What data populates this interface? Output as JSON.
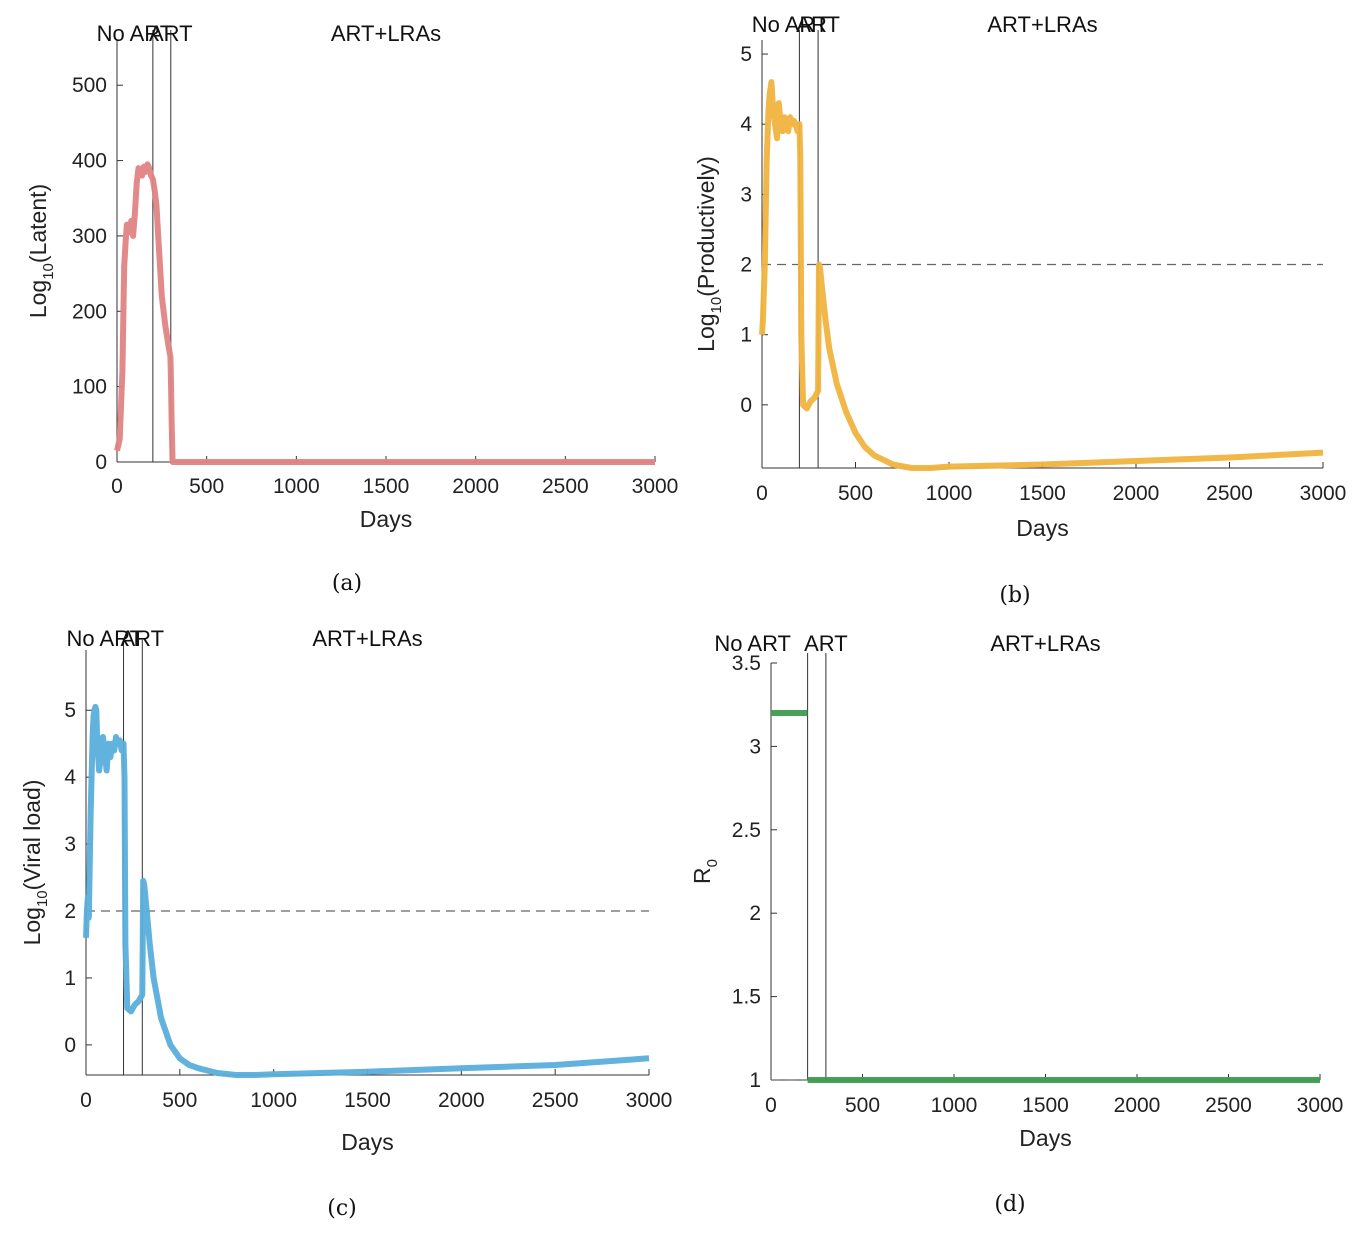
{
  "chart_data": [
    {
      "panel": "(a)",
      "type": "line",
      "title": "",
      "xlabel": "Days",
      "ylabel_base": "Log",
      "ylabel_sub": "10",
      "ylabel_rest": "(Latent)",
      "xlim": [
        0,
        3000
      ],
      "ylim": [
        0,
        560
      ],
      "xticks": [
        0,
        500,
        1000,
        1500,
        2000,
        2500,
        3000
      ],
      "yticks": [
        0,
        100,
        200,
        300,
        400,
        500
      ],
      "phase_lines": [
        200,
        300
      ],
      "phase_labels": [
        {
          "text": "No ART",
          "x": 100
        },
        {
          "text": "ART",
          "x": 300
        },
        {
          "text": "ART+LRAs",
          "x": 1500
        }
      ],
      "threshold": null,
      "color": "#e08484",
      "series": [
        {
          "x": [
            0,
            5,
            15,
            30,
            40,
            50,
            55,
            60,
            70,
            80,
            90,
            100,
            110,
            120,
            130,
            140,
            150,
            160,
            170,
            180,
            190,
            200,
            210,
            220,
            230,
            240,
            250,
            260,
            270,
            280,
            290,
            298,
            300,
            305,
            310,
            320,
            350,
            400,
            500,
            1000,
            1500,
            2000,
            2500,
            3000
          ],
          "y": [
            15,
            20,
            30,
            120,
            260,
            300,
            315,
            310,
            305,
            320,
            300,
            330,
            370,
            390,
            385,
            380,
            392,
            385,
            395,
            390,
            380,
            375,
            360,
            340,
            300,
            260,
            220,
            200,
            180,
            165,
            150,
            140,
            120,
            50,
            0,
            0,
            0,
            0,
            0,
            0,
            0,
            0,
            0,
            0
          ]
        }
      ]
    },
    {
      "panel": "(b)",
      "type": "line",
      "title": "",
      "xlabel": "Days",
      "ylabel_base": "Log",
      "ylabel_sub": "10",
      "ylabel_rest": "(Productively)",
      "xlim": [
        0,
        3000
      ],
      "ylim": [
        -0.9,
        5.2
      ],
      "xticks": [
        0,
        500,
        1000,
        1500,
        2000,
        2500,
        3000
      ],
      "yticks": [
        0,
        1,
        2,
        3,
        4,
        5
      ],
      "phase_lines": [
        200,
        300
      ],
      "phase_labels": [
        {
          "text": "No ART",
          "x": 150
        },
        {
          "text": "ART",
          "x": 300
        },
        {
          "text": "ART+LRAs",
          "x": 1500
        }
      ],
      "threshold": 2,
      "color": "#f0b33e",
      "series": [
        {
          "x": [
            0,
            5,
            15,
            25,
            35,
            40,
            45,
            50,
            60,
            70,
            80,
            90,
            100,
            110,
            120,
            130,
            140,
            150,
            160,
            170,
            180,
            190,
            200,
            205,
            210,
            220,
            240,
            260,
            280,
            300,
            305,
            310,
            320,
            340,
            360,
            400,
            450,
            500,
            550,
            600,
            700,
            800,
            900,
            1000,
            1500,
            2000,
            2500,
            3000
          ],
          "y": [
            1.0,
            1.2,
            2.0,
            3.5,
            4.2,
            4.4,
            4.5,
            4.6,
            4.2,
            4.0,
            3.8,
            4.3,
            4.0,
            3.9,
            4.1,
            4.0,
            3.9,
            4.1,
            4.0,
            4.05,
            4.0,
            3.9,
            4.0,
            3.5,
            1.0,
            0.0,
            -0.05,
            0.05,
            0.1,
            0.2,
            2.0,
            1.95,
            1.7,
            1.2,
            0.8,
            0.3,
            -0.1,
            -0.4,
            -0.6,
            -0.72,
            -0.85,
            -0.9,
            -0.9,
            -0.88,
            -0.85,
            -0.8,
            -0.75,
            -0.68
          ]
        }
      ]
    },
    {
      "panel": "(c)",
      "type": "line",
      "title": "",
      "xlabel": "Days",
      "ylabel_base": "Log",
      "ylabel_sub": "10",
      "ylabel_rest": "(Viral load)",
      "xlim": [
        0,
        3000
      ],
      "ylim": [
        -0.45,
        5.9
      ],
      "xticks": [
        0,
        500,
        1000,
        1500,
        2000,
        2500,
        3000
      ],
      "yticks": [
        0,
        1,
        2,
        3,
        4,
        5
      ],
      "phase_lines": [
        200,
        300
      ],
      "phase_labels": [
        {
          "text": "No ART",
          "x": 100
        },
        {
          "text": "ART",
          "x": 300
        },
        {
          "text": "ART+LRAs",
          "x": 1500
        }
      ],
      "threshold": 2,
      "color": "#5aaedc",
      "series": [
        {
          "x": [
            0,
            5,
            10,
            15,
            25,
            35,
            40,
            45,
            50,
            55,
            60,
            70,
            80,
            90,
            100,
            110,
            120,
            130,
            140,
            150,
            160,
            170,
            180,
            190,
            200,
            205,
            210,
            220,
            240,
            260,
            280,
            300,
            305,
            310,
            320,
            340,
            360,
            400,
            450,
            500,
            550,
            600,
            700,
            800,
            900,
            1000,
            1500,
            2000,
            2500,
            3000
          ],
          "y": [
            1.6,
            2.0,
            2.2,
            1.9,
            3.5,
            4.6,
            4.9,
            5.0,
            5.05,
            5.0,
            4.5,
            4.1,
            4.3,
            4.6,
            4.4,
            4.1,
            4.5,
            4.3,
            4.5,
            4.4,
            4.6,
            4.5,
            4.55,
            4.4,
            4.5,
            4.0,
            1.5,
            0.55,
            0.5,
            0.6,
            0.65,
            0.75,
            2.45,
            2.4,
            2.1,
            1.5,
            1.0,
            0.4,
            0.0,
            -0.2,
            -0.3,
            -0.35,
            -0.42,
            -0.45,
            -0.45,
            -0.44,
            -0.4,
            -0.35,
            -0.3,
            -0.2
          ]
        }
      ]
    },
    {
      "panel": "(d)",
      "type": "line",
      "title": "",
      "xlabel": "Days",
      "ylabel_base": "R",
      "ylabel_sub": "0",
      "ylabel_rest": "",
      "xlim": [
        0,
        3000
      ],
      "ylim": [
        1,
        3.5
      ],
      "xticks": [
        0,
        500,
        1000,
        1500,
        2000,
        2500,
        3000
      ],
      "yticks": [
        1,
        1.5,
        2,
        2.5,
        3,
        3.5
      ],
      "phase_lines": [
        200,
        300
      ],
      "phase_labels": [
        {
          "text": "No ART",
          "x": -100
        },
        {
          "text": "ART",
          "x": 300
        },
        {
          "text": "ART+LRAs",
          "x": 1500
        }
      ],
      "threshold": 1,
      "color": "#3f9b4f",
      "series": [
        {
          "x": [
            0,
            200
          ],
          "y": [
            3.2,
            3.2
          ]
        },
        {
          "x": [
            200,
            3000
          ],
          "y": [
            1.0,
            1.0
          ]
        }
      ]
    }
  ],
  "captions": [
    "(a)",
    "(b)",
    "(c)",
    "(d)"
  ]
}
